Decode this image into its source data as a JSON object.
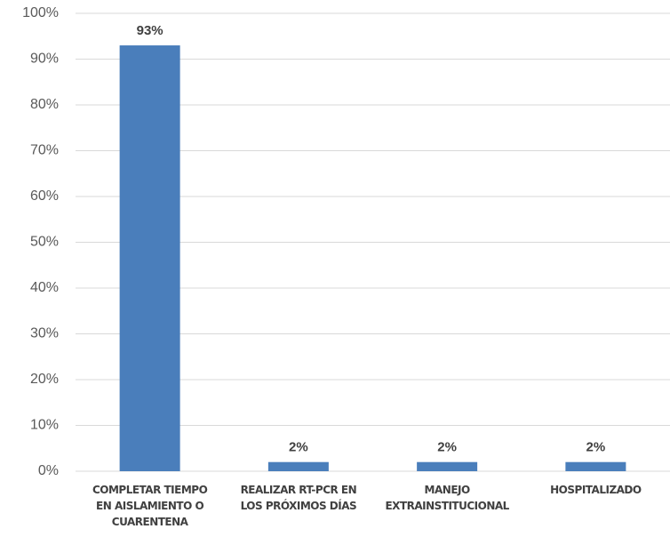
{
  "chart_data": {
    "type": "bar",
    "categories": [
      "COMPLETAR TIEMPO\nEN AISLAMIENTO O\nCUARENTENA",
      "REALIZAR RT-PCR EN\nLOS PRÓXIMOS DÍAS",
      "MANEJO\nEXTRAINSTITUCIONAL",
      "HOSPITALIZADO"
    ],
    "values": [
      93,
      2,
      2,
      2
    ],
    "value_labels": [
      "93%",
      "2%",
      "2%",
      "2%"
    ],
    "color": "#4a7ebb",
    "ylim": [
      0,
      100
    ],
    "yticks": [
      {
        "value": 0,
        "label": "0%"
      },
      {
        "value": 10,
        "label": "10%"
      },
      {
        "value": 20,
        "label": "20%"
      },
      {
        "value": 30,
        "label": "30%"
      },
      {
        "value": 40,
        "label": "40%"
      },
      {
        "value": 50,
        "label": "50%"
      },
      {
        "value": 60,
        "label": "60%"
      },
      {
        "value": 70,
        "label": "70%"
      },
      {
        "value": 80,
        "label": "80%"
      },
      {
        "value": 90,
        "label": "90%"
      },
      {
        "value": 100,
        "label": "100%"
      }
    ],
    "grid": true
  }
}
